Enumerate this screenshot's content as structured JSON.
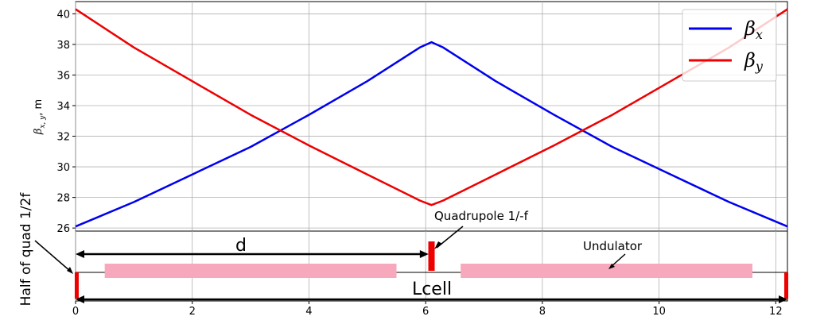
{
  "chart_data": [
    {
      "type": "line",
      "ylabel": "β_{x,y}, m",
      "ylabel_main": "β",
      "ylabel_sub": "x, y",
      "ylabel_unit": ", m",
      "xlim": [
        0,
        12.2
      ],
      "ylim": [
        25.8,
        40.8
      ],
      "yticks": [
        26,
        28,
        30,
        32,
        34,
        36,
        38,
        40
      ],
      "xgrid": [
        0,
        2,
        4,
        6,
        8,
        10,
        12
      ],
      "grid": true,
      "legend_position": "top-right",
      "series": [
        {
          "name": "βx",
          "name_main": "β",
          "name_sub": "x",
          "color": "#0000ee",
          "x": [
            0,
            1,
            2,
            3,
            4,
            5,
            5.9,
            6.1,
            6.3,
            7.2,
            8.2,
            9.2,
            10.2,
            11.2,
            12.2
          ],
          "y": [
            26.1,
            27.7,
            29.5,
            31.3,
            33.4,
            35.6,
            37.8,
            38.15,
            37.8,
            35.6,
            33.4,
            31.3,
            29.5,
            27.7,
            26.1
          ]
        },
        {
          "name": "βy",
          "name_main": "β",
          "name_sub": "y",
          "color": "#ee0000",
          "x": [
            0,
            1,
            2,
            3,
            4,
            5,
            5.9,
            6.1,
            6.3,
            7.2,
            8.2,
            9.2,
            10.2,
            11.2,
            12.2
          ],
          "y": [
            40.3,
            37.8,
            35.6,
            33.4,
            31.4,
            29.5,
            27.8,
            27.5,
            27.8,
            29.5,
            31.4,
            33.4,
            35.6,
            37.8,
            40.3
          ]
        }
      ]
    },
    {
      "type": "diagram",
      "xlim": [
        0,
        12.2
      ],
      "xticks": [
        0,
        2,
        4,
        6,
        8,
        10,
        12
      ],
      "undulators": [
        {
          "x0": 0.5,
          "x1": 5.5
        },
        {
          "x0": 6.6,
          "x1": 11.6
        }
      ],
      "magnets": [
        {
          "x": 0.02,
          "kind": "half"
        },
        {
          "x": 6.1,
          "kind": "full"
        },
        {
          "x": 12.18,
          "kind": "half"
        }
      ],
      "d_arrow": {
        "x0": 0,
        "x1": 6.05
      },
      "lcell_arrow": {
        "x0": 0,
        "x1": 12.2
      },
      "colors": {
        "undulator": "#f7a8bd",
        "magnet": "#ee0000",
        "beamline": "#000000"
      },
      "labels": {
        "quadrupole": "Quadrupole 1/-f",
        "undulator": "Undulator",
        "d": "d",
        "lcell": "Lcell",
        "half_quad": "Half of quad 1/2f"
      }
    }
  ]
}
